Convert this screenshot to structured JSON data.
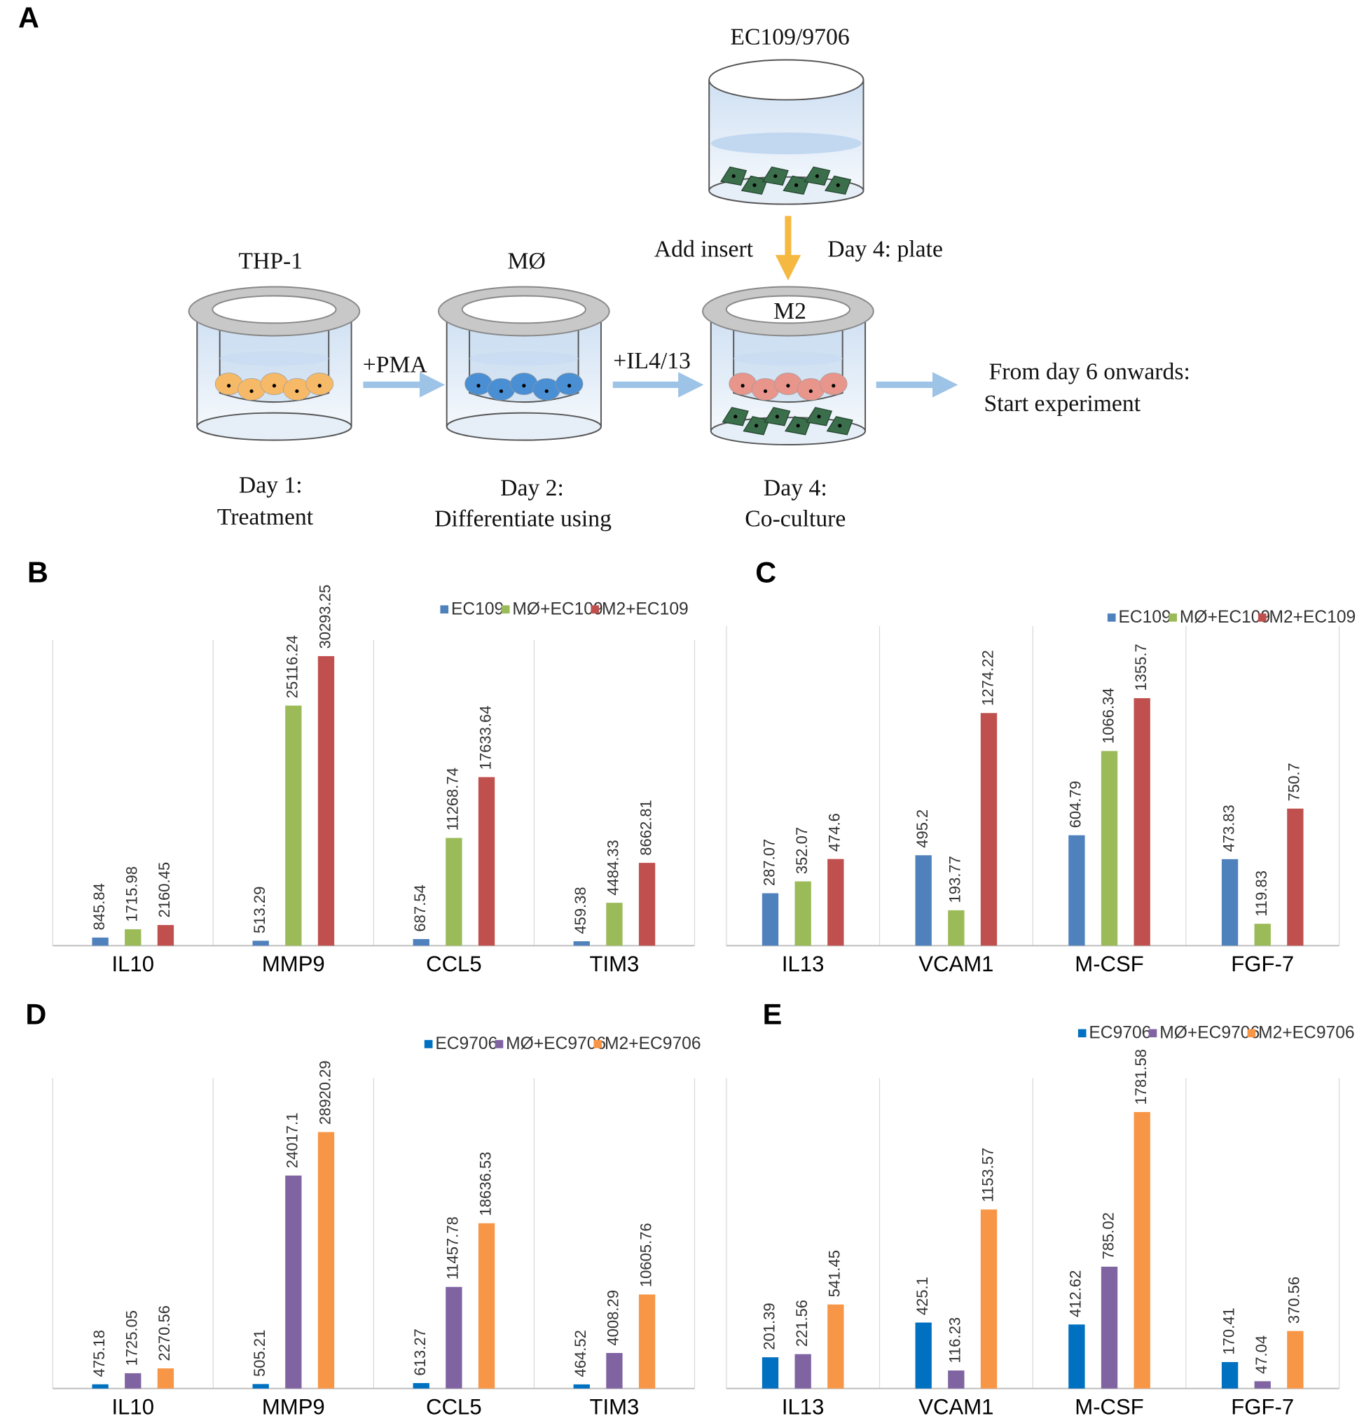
{
  "diagram": {
    "label": "A",
    "top_dish": "EC109/9706",
    "add_insert": "Add insert",
    "plate": "Day 4: plate",
    "thp1": "THP-1",
    "mo": "MØ",
    "m2": "M2",
    "pma": "+PMA",
    "il4": "+IL4/13",
    "onwards": "From day 6 onwards:",
    "start": "Start experiment",
    "day1": "Day 1:",
    "day1_text": "Treatment",
    "day2": "Day 2:",
    "day2_text": "Differentiate using",
    "day4": "Day 4:",
    "day4_text": "Co-culture"
  },
  "chart_data": [
    {
      "type": "bar",
      "label": "B",
      "categories": [
        "IL10",
        "MMP9",
        "CCL5",
        "TIM3"
      ],
      "ylim": [
        0,
        32000
      ],
      "series": [
        {
          "name": "EC109",
          "color": "#4f81bd",
          "values": [
            845.84,
            513.29,
            687.54,
            459.38
          ]
        },
        {
          "name": "MØ+EC109",
          "color": "#9bbb59",
          "values": [
            1715.98,
            25116.24,
            11268.74,
            4484.33
          ]
        },
        {
          "name": "M2+EC109",
          "color": "#c0504d",
          "values": [
            2160.45,
            30293.25,
            17633.64,
            8662.81
          ]
        }
      ]
    },
    {
      "type": "bar",
      "label": "C",
      "categories": [
        "IL13",
        "VCAM1",
        "M-CSF",
        "FGF-7"
      ],
      "ylim": [
        0,
        1750
      ],
      "series": [
        {
          "name": "EC109",
          "color": "#4f81bd",
          "values": [
            287.07,
            495.2,
            604.79,
            473.83
          ]
        },
        {
          "name": "MØ+EC109",
          "color": "#9bbb59",
          "values": [
            352.07,
            193.77,
            1066.34,
            119.83
          ]
        },
        {
          "name": "M2+EC109",
          "color": "#c0504d",
          "values": [
            474.6,
            1274.22,
            1355.7,
            750.7
          ]
        }
      ]
    },
    {
      "type": "bar",
      "label": "D",
      "categories": [
        "IL10",
        "MMP9",
        "CCL5",
        "TIM3"
      ],
      "ylim": [
        0,
        35000
      ],
      "series": [
        {
          "name": "EC9706",
          "color": "#0070c0",
          "values": [
            475.18,
            505.21,
            613.27,
            464.52
          ]
        },
        {
          "name": "MØ+EC9706",
          "color": "#8064a2",
          "values": [
            1725.05,
            24017.1,
            11457.78,
            4008.29
          ]
        },
        {
          "name": "M2+EC9706",
          "color": "#f79646",
          "values": [
            2270.56,
            28920.29,
            18636.53,
            10605.76
          ]
        }
      ]
    },
    {
      "type": "bar",
      "label": "E",
      "categories": [
        "IL13",
        "VCAM1",
        "M-CSF",
        "FGF-7"
      ],
      "ylim": [
        0,
        2000
      ],
      "series": [
        {
          "name": "EC9706",
          "color": "#0070c0",
          "values": [
            201.39,
            425.1,
            412.62,
            170.41
          ]
        },
        {
          "name": "MØ+EC9706",
          "color": "#8064a2",
          "values": [
            221.56,
            116.23,
            785.02,
            47.04
          ]
        },
        {
          "name": "M2+EC9706",
          "color": "#f79646",
          "values": [
            541.45,
            1153.57,
            1781.58,
            370.56
          ]
        }
      ]
    }
  ]
}
